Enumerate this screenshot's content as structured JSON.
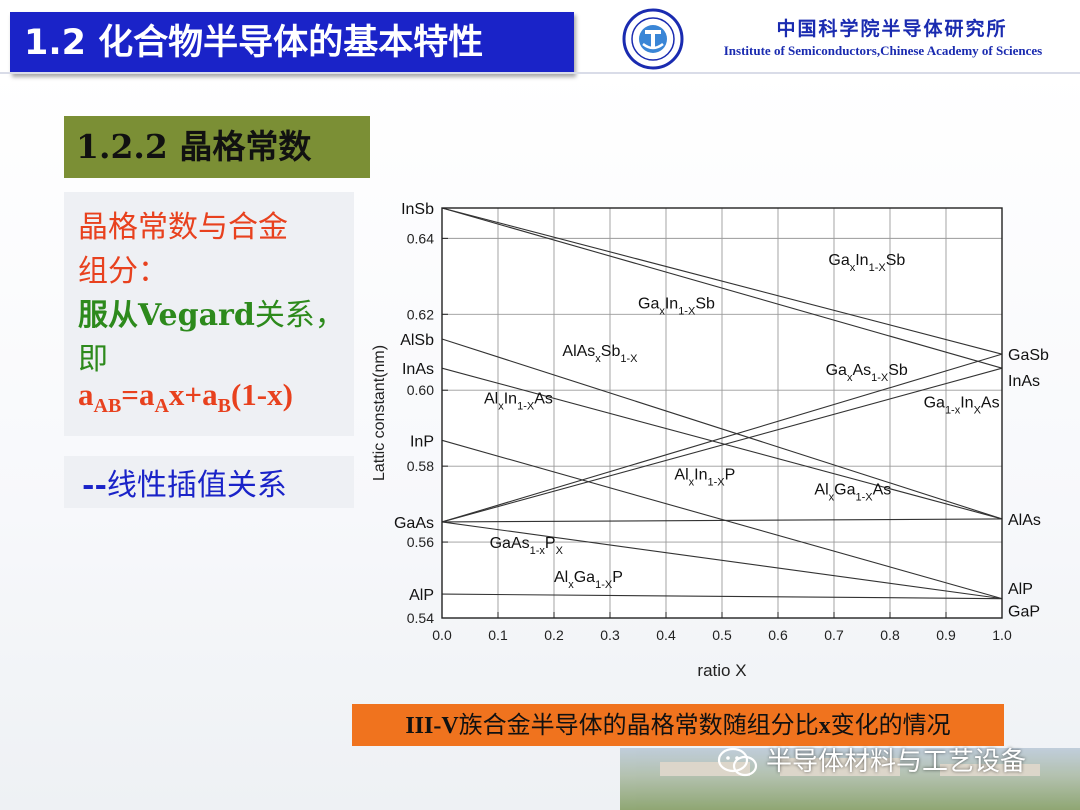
{
  "header": {
    "title": "1.2 化合物半导体的基本特性",
    "institute_cn": "中国科学院半导体研究所",
    "institute_en": "Institute of Semiconductors,Chinese Academy of Sciences"
  },
  "section": {
    "heading": "1.2.2  晶格常数"
  },
  "left_text": {
    "line1": "晶格常数与合金",
    "line2": "组分：",
    "line3_bold": "服从Vegard",
    "line3_rest": "关系，",
    "line4": "即",
    "formula": {
      "a": "a",
      "ab": "AB",
      "eq": "=a",
      "A": "A",
      "mid": "x+a",
      "B": "B",
      "end": "(1-x)"
    },
    "interp_dash": "--",
    "interp": "线性插值关系"
  },
  "caption": {
    "bold": "III-V",
    "rest1": "族合金半导体的晶格常数随组分比",
    "x": "x",
    "rest2": "变化的情况"
  },
  "watermark": {
    "text": "半导体材料与工艺设备"
  },
  "chart_data": {
    "type": "line",
    "xlabel": "ratio X",
    "ylabel": "Lattic constant(nm)",
    "xlim": [
      0.0,
      1.0
    ],
    "ylim": [
      0.54,
      0.648
    ],
    "xticks": [
      "0.0",
      "0.1",
      "0.2",
      "0.3",
      "0.4",
      "0.5",
      "0.6",
      "0.7",
      "0.8",
      "0.9",
      "1.0"
    ],
    "yticks": [
      "0.54",
      "0.56",
      "0.58",
      "0.60",
      "0.62",
      "0.64"
    ],
    "grid": true,
    "left_labels": [
      {
        "text": "InSb",
        "y": 0.648
      },
      {
        "text": "AlSb",
        "y": 0.6135
      },
      {
        "text": "InAs",
        "y": 0.6058
      },
      {
        "text": "InP",
        "y": 0.5868
      },
      {
        "text": "GaAs",
        "y": 0.5653
      },
      {
        "text": "AlP",
        "y": 0.5463
      }
    ],
    "right_labels": [
      {
        "text": "GaSb",
        "y": 0.6095
      },
      {
        "text": "InAs",
        "y": 0.6058
      },
      {
        "text": "AlAs",
        "y": 0.5661
      },
      {
        "text": "AlP",
        "y": 0.5463
      },
      {
        "text": "GaP",
        "y": 0.5451
      }
    ],
    "series": [
      {
        "x": [
          0,
          1
        ],
        "y": [
          0.648,
          0.6095
        ]
      },
      {
        "x": [
          0,
          1
        ],
        "y": [
          0.648,
          0.6058
        ]
      },
      {
        "x": [
          0,
          1
        ],
        "y": [
          0.6135,
          0.5661
        ]
      },
      {
        "x": [
          0,
          1
        ],
        "y": [
          0.6058,
          0.5661
        ]
      },
      {
        "x": [
          0,
          1
        ],
        "y": [
          0.5868,
          0.5451
        ]
      },
      {
        "x": [
          0,
          1
        ],
        "y": [
          0.5653,
          0.6095
        ]
      },
      {
        "x": [
          0,
          1
        ],
        "y": [
          0.5653,
          0.6058
        ]
      },
      {
        "x": [
          0,
          1
        ],
        "y": [
          0.5653,
          0.5661
        ]
      },
      {
        "x": [
          0,
          1
        ],
        "y": [
          0.5653,
          0.5451
        ]
      },
      {
        "x": [
          0,
          1
        ],
        "y": [
          0.5463,
          0.5451
        ]
      }
    ],
    "annotations": [
      {
        "x": 0.69,
        "y": 0.633,
        "parts": [
          [
            "Ga",
            ""
          ],
          [
            "x",
            "sub"
          ],
          [
            "In",
            ""
          ],
          [
            "1-X",
            "sub"
          ],
          [
            "Sb",
            ""
          ]
        ]
      },
      {
        "x": 0.35,
        "y": 0.6215,
        "parts": [
          [
            "Ga",
            ""
          ],
          [
            "x",
            "sub"
          ],
          [
            "In",
            ""
          ],
          [
            "1-X",
            "sub"
          ],
          [
            "Sb",
            ""
          ]
        ]
      },
      {
        "x": 0.215,
        "y": 0.609,
        "parts": [
          [
            "AlAs",
            ""
          ],
          [
            "x",
            "sub"
          ],
          [
            "Sb",
            ""
          ],
          [
            "1-X",
            "sub"
          ]
        ]
      },
      {
        "x": 0.685,
        "y": 0.604,
        "parts": [
          [
            "Ga",
            ""
          ],
          [
            "x",
            "sub"
          ],
          [
            "As",
            ""
          ],
          [
            "1-X",
            "sub"
          ],
          [
            "Sb",
            ""
          ]
        ]
      },
      {
        "x": 0.075,
        "y": 0.5965,
        "parts": [
          [
            "Al",
            ""
          ],
          [
            "x",
            "sub"
          ],
          [
            "In",
            ""
          ],
          [
            "1-X",
            "sub"
          ],
          [
            "As",
            ""
          ]
        ]
      },
      {
        "x": 0.86,
        "y": 0.5955,
        "parts": [
          [
            "Ga",
            ""
          ],
          [
            "1-x",
            "sub"
          ],
          [
            "In",
            ""
          ],
          [
            "X",
            "sub"
          ],
          [
            "As",
            ""
          ]
        ]
      },
      {
        "x": 0.415,
        "y": 0.5765,
        "parts": [
          [
            "Al",
            ""
          ],
          [
            "x",
            "sub"
          ],
          [
            "In",
            ""
          ],
          [
            "1-X",
            "sub"
          ],
          [
            "P",
            ""
          ]
        ]
      },
      {
        "x": 0.665,
        "y": 0.5725,
        "parts": [
          [
            "Al",
            ""
          ],
          [
            "x",
            "sub"
          ],
          [
            "Ga",
            ""
          ],
          [
            "1-X",
            "sub"
          ],
          [
            "As",
            ""
          ]
        ]
      },
      {
        "x": 0.085,
        "y": 0.5585,
        "parts": [
          [
            "GaAs",
            ""
          ],
          [
            "1-x",
            "sub"
          ],
          [
            "P",
            ""
          ],
          [
            "X",
            "sub"
          ]
        ]
      },
      {
        "x": 0.2,
        "y": 0.5495,
        "parts": [
          [
            "Al",
            ""
          ],
          [
            "x",
            "sub"
          ],
          [
            "Ga",
            ""
          ],
          [
            "1-X",
            "sub"
          ],
          [
            "P",
            ""
          ]
        ]
      }
    ]
  }
}
